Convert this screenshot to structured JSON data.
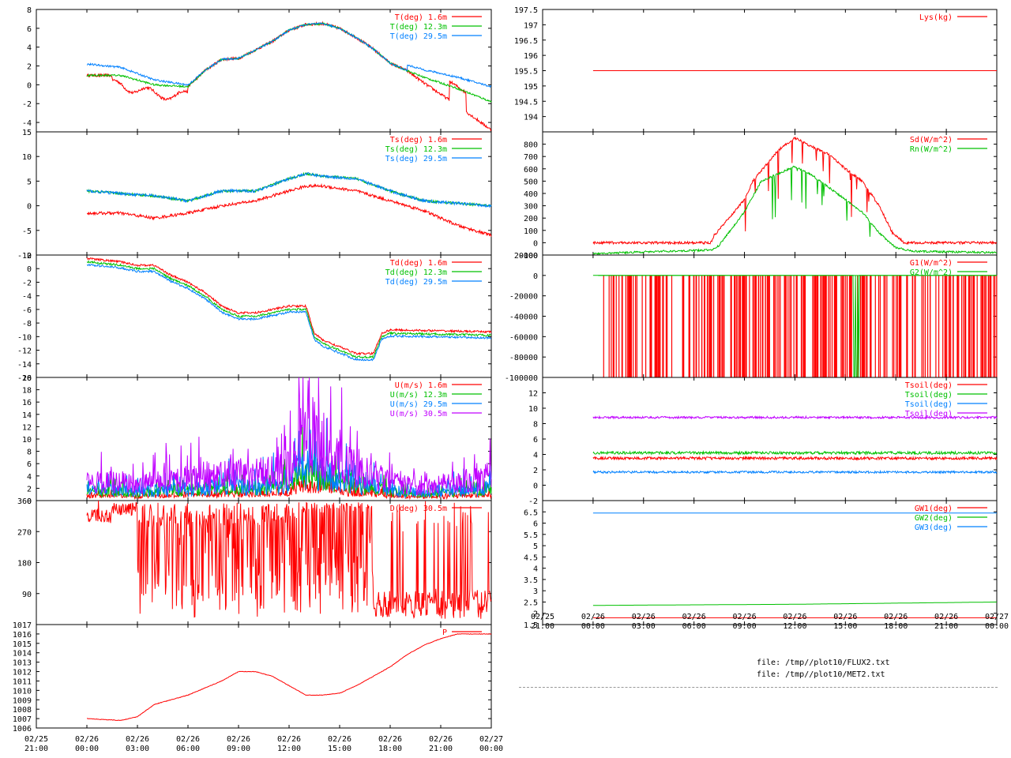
{
  "colors": {
    "red": "#ff0000",
    "green": "#00c000",
    "blue": "#0080ff",
    "purple": "#c000ff"
  },
  "xaxis_ticks": [
    {
      "t": -3,
      "l1": "02/25",
      "l2": "21:00"
    },
    {
      "t": 0,
      "l1": "02/26",
      "l2": "00:00"
    },
    {
      "t": 3,
      "l1": "02/26",
      "l2": "03:00"
    },
    {
      "t": 6,
      "l1": "02/26",
      "l2": "06:00"
    },
    {
      "t": 9,
      "l1": "02/26",
      "l2": "09:00"
    },
    {
      "t": 12,
      "l1": "02/26",
      "l2": "12:00"
    },
    {
      "t": 15,
      "l1": "02/26",
      "l2": "15:00"
    },
    {
      "t": 18,
      "l1": "02/26",
      "l2": "18:00"
    },
    {
      "t": 21,
      "l1": "02/26",
      "l2": "21:00"
    },
    {
      "t": 24,
      "l1": "02/27",
      "l2": "00:00"
    }
  ],
  "footer": {
    "file1": "file: /tmp//plot10/FLUX2.txt",
    "file2": "file: /tmp//plot10/MET2.txt"
  },
  "chart_data": [
    {
      "id": "T",
      "type": "line",
      "column": "left",
      "ylim": [
        -5,
        8
      ],
      "yticks": [
        -4,
        -2,
        0,
        2,
        4,
        6,
        8
      ],
      "series": [
        {
          "name": "T(deg)  1.6m",
          "color": "red",
          "curve": "T",
          "offset": 0,
          "noise": 0.3,
          "extra": "t_red"
        },
        {
          "name": "T(deg) 12.3m",
          "color": "green",
          "curve": "T",
          "offset": 0,
          "noise": 0.2,
          "extra": "t_green"
        },
        {
          "name": "T(deg) 29.5m",
          "color": "blue",
          "curve": "T",
          "offset": 0,
          "noise": 0.2,
          "extra": "t_blue"
        }
      ]
    },
    {
      "id": "Ts",
      "type": "line",
      "column": "left",
      "ylim": [
        -10,
        15
      ],
      "yticks": [
        -10,
        -5,
        0,
        5,
        10,
        15
      ],
      "series": [
        {
          "name": "Ts(deg)  1.6m",
          "color": "red",
          "curve": "TsR",
          "offset": 0,
          "noise": 0.6
        },
        {
          "name": "Ts(deg) 12.3m",
          "color": "green",
          "curve": "TsB",
          "offset": 0,
          "noise": 0.5
        },
        {
          "name": "Ts(deg) 29.5m",
          "color": "blue",
          "curve": "TsB",
          "offset": 0,
          "noise": 0.6
        }
      ]
    },
    {
      "id": "Td",
      "type": "line",
      "column": "left",
      "ylim": [
        -16,
        2
      ],
      "yticks": [
        -16,
        -14,
        -12,
        -10,
        -8,
        -6,
        -4,
        -2,
        0,
        2
      ],
      "series": [
        {
          "name": "Td(deg)  1.6m",
          "color": "red",
          "curve": "Td",
          "offset": 0.5,
          "noise": 0.3
        },
        {
          "name": "Td(deg) 12.3m",
          "color": "green",
          "curve": "Td",
          "offset": 0,
          "noise": 0.3
        },
        {
          "name": "Td(deg) 29.5m",
          "color": "blue",
          "curve": "Td",
          "offset": -0.4,
          "noise": 0.3
        }
      ]
    },
    {
      "id": "U",
      "type": "line",
      "column": "left",
      "ylim": [
        0,
        20
      ],
      "yticks": [
        0,
        2,
        4,
        6,
        8,
        10,
        12,
        14,
        16,
        18,
        20
      ],
      "series": [
        {
          "name": "U(m/s)  1.6m",
          "color": "red",
          "curve": "U",
          "scale": 0.25,
          "noise": 0.5
        },
        {
          "name": "U(m/s) 12.3m",
          "color": "green",
          "curve": "U",
          "scale": 0.45,
          "noise": 1.0
        },
        {
          "name": "U(m/s) 29.5m",
          "color": "blue",
          "curve": "U",
          "scale": 0.55,
          "noise": 1.5
        },
        {
          "name": "U(m/s) 30.5m",
          "color": "purple",
          "curve": "U",
          "scale": 1.0,
          "noise": 2.5
        }
      ]
    },
    {
      "id": "D",
      "type": "line",
      "column": "left",
      "ylim": [
        0,
        360
      ],
      "yticks": [
        90,
        180,
        270,
        360
      ],
      "series": [
        {
          "name": "D(deg) 30.5m",
          "color": "red",
          "curve": "D"
        }
      ]
    },
    {
      "id": "P",
      "type": "line",
      "column": "left",
      "ylim": [
        1006,
        1017
      ],
      "yticks": [
        1006,
        1007,
        1008,
        1009,
        1010,
        1011,
        1012,
        1013,
        1014,
        1015,
        1016,
        1017
      ],
      "series": [
        {
          "name": "P",
          "color": "red",
          "curve": "P",
          "noise": 0.05
        }
      ]
    },
    {
      "id": "Lys",
      "type": "line",
      "column": "right",
      "ylim": [
        193.5,
        197.5
      ],
      "yticks": [
        194,
        194.5,
        195,
        195.5,
        196,
        196.5,
        197,
        197.5
      ],
      "series": [
        {
          "name": "Lys(kg)",
          "color": "red",
          "curve": "const",
          "value": 195.5
        }
      ]
    },
    {
      "id": "Rad",
      "type": "line",
      "column": "right",
      "ylim": [
        -100,
        900
      ],
      "yticks": [
        -100,
        0,
        100,
        200,
        300,
        400,
        500,
        600,
        700,
        800
      ],
      "series": [
        {
          "name": "Sd(W/m^2)",
          "color": "red",
          "curve": "Sd"
        },
        {
          "name": "Rn(W/m^2)",
          "color": "green",
          "curve": "Rn"
        }
      ]
    },
    {
      "id": "G",
      "type": "line",
      "column": "right",
      "ylim": [
        -100000,
        20000
      ],
      "yticks": [
        -100000,
        -80000,
        -60000,
        -40000,
        -20000,
        0,
        20000
      ],
      "series": [
        {
          "name": "G1(W/m^2)",
          "color": "red",
          "curve": "G1"
        },
        {
          "name": "G2(W/m^2)",
          "color": "green",
          "curve": "G2"
        }
      ]
    },
    {
      "id": "Tsoil",
      "type": "line",
      "column": "right",
      "ylim": [
        -2,
        14
      ],
      "yticks": [
        -2,
        0,
        2,
        4,
        6,
        8,
        10,
        12
      ],
      "series": [
        {
          "name": "Tsoil(deg)",
          "color": "red",
          "curve": "const",
          "value": 3.5,
          "noise": 0.5
        },
        {
          "name": "Tsoil(deg)",
          "color": "green",
          "curve": "const",
          "value": 4.2,
          "noise": 0.5
        },
        {
          "name": "Tsoil(deg)",
          "color": "blue",
          "curve": "const",
          "value": 1.7,
          "noise": 0.4
        },
        {
          "name": "Tsoil(deg)",
          "color": "purple",
          "curve": "const",
          "value": 8.8,
          "noise": 0.4
        }
      ]
    },
    {
      "id": "GW",
      "type": "line",
      "column": "right",
      "ylim": [
        1.5,
        7
      ],
      "yticks": [
        1.5,
        2,
        2.5,
        3,
        3.5,
        4,
        4.5,
        5,
        5.5,
        6,
        6.5
      ],
      "series": [
        {
          "name": "GW1(deg)",
          "color": "red",
          "curve": "const",
          "value": 1.8
        },
        {
          "name": "GW2(deg)",
          "color": "green",
          "curve": "GW2"
        },
        {
          "name": "GW3(deg)",
          "color": "blue",
          "curve": "const",
          "value": 6.45
        }
      ]
    }
  ]
}
